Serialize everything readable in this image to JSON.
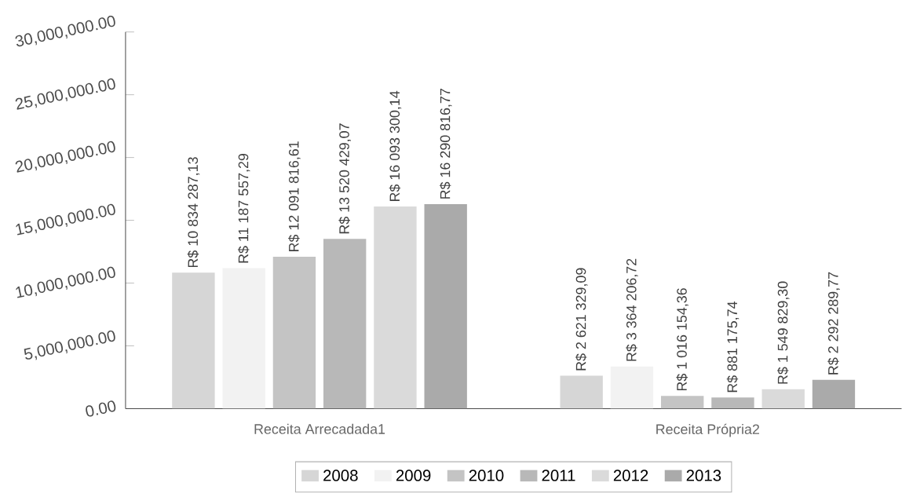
{
  "chart_data": {
    "type": "bar",
    "categories": [
      "Receita Arrecadada1",
      "Receita Própria2"
    ],
    "series": [
      {
        "name": "2008",
        "color": "#d6d6d6",
        "values": [
          10834287.13,
          2621329.09
        ],
        "value_labels": [
          "R$ 10 834 287,13",
          "R$ 2 621 329,09"
        ]
      },
      {
        "name": "2009",
        "color": "#f2f2f2",
        "values": [
          11187557.29,
          3364206.72
        ],
        "value_labels": [
          "R$ 11 187 557,29",
          "R$ 3 364 206,72"
        ]
      },
      {
        "name": "2010",
        "color": "#c4c4c4",
        "values": [
          12091816.61,
          1016154.36
        ],
        "value_labels": [
          "R$ 12 091 816,61",
          "R$ 1 016 154,36"
        ]
      },
      {
        "name": "2011",
        "color": "#b8b8b8",
        "values": [
          13520429.07,
          881175.74
        ],
        "value_labels": [
          "R$ 13 520 429,07",
          "R$ 881 175,74"
        ]
      },
      {
        "name": "2012",
        "color": "#dadada",
        "values": [
          16093300.14,
          1549829.3
        ],
        "value_labels": [
          "R$ 16 093 300,14",
          "R$ 1 549 829,30"
        ]
      },
      {
        "name": "2013",
        "color": "#aaaaaa",
        "values": [
          16290816.77,
          2292289.77
        ],
        "value_labels": [
          "R$ 16 290 816,77",
          "R$ 2 292 289,77"
        ]
      }
    ],
    "ylim": [
      0,
      30000000
    ],
    "yticks": [
      {
        "value": 0,
        "label": "0.00"
      },
      {
        "value": 5000000,
        "label": "5,000,000.00"
      },
      {
        "value": 10000000,
        "label": "10,000,000.00"
      },
      {
        "value": 15000000,
        "label": "15,000,000.00"
      },
      {
        "value": 20000000,
        "label": "20,000,000.00"
      },
      {
        "value": 25000000,
        "label": "25,000,000.00"
      },
      {
        "value": 30000000,
        "label": "30,000,000.00"
      }
    ],
    "grid": false,
    "legend": "bottom"
  }
}
